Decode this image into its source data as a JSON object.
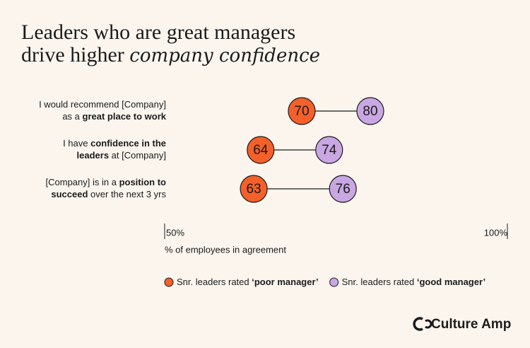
{
  "chart_data": {
    "type": "dumbbell",
    "title": [
      [
        {
          "text": "Leaders who are great managers"
        }
      ],
      [
        {
          "text": "drive higher "
        },
        {
          "text": "company confidence",
          "script": true
        }
      ]
    ],
    "categories": [
      [
        [
          {
            "text": "I would recommend [Company]"
          }
        ],
        [
          {
            "text": "as a "
          },
          {
            "text": "great place to work",
            "bold": true
          }
        ]
      ],
      [
        [
          {
            "text": "I have "
          },
          {
            "text": "confidence in the",
            "bold": true
          }
        ],
        [
          {
            "text": "leaders",
            "bold": true
          },
          {
            "text": " at [Company]"
          }
        ]
      ],
      [
        [
          {
            "text": "[Company] is in a "
          },
          {
            "text": "position to",
            "bold": true
          }
        ],
        [
          {
            "text": "succeed",
            "bold": true
          },
          {
            "text": " over the next 3 yrs"
          }
        ]
      ]
    ],
    "series": [
      {
        "name": [
          {
            "text": "Snr. leaders rated "
          },
          {
            "text": "‘poor manager’",
            "bold": true
          }
        ],
        "color": "#f4602a",
        "values": [
          70,
          64,
          63
        ]
      },
      {
        "name": [
          {
            "text": "Snr. leaders rated "
          },
          {
            "text": "‘good manager’",
            "bold": true
          }
        ],
        "color": "#c9a7e3",
        "values": [
          80,
          74,
          76
        ]
      }
    ],
    "xlim": [
      50,
      100
    ],
    "xticks": [
      {
        "value": 50,
        "label": "50%"
      },
      {
        "value": 100,
        "label": "100%"
      }
    ],
    "xlabel": "% of employees in agreement"
  },
  "logo": "Culture Amp"
}
